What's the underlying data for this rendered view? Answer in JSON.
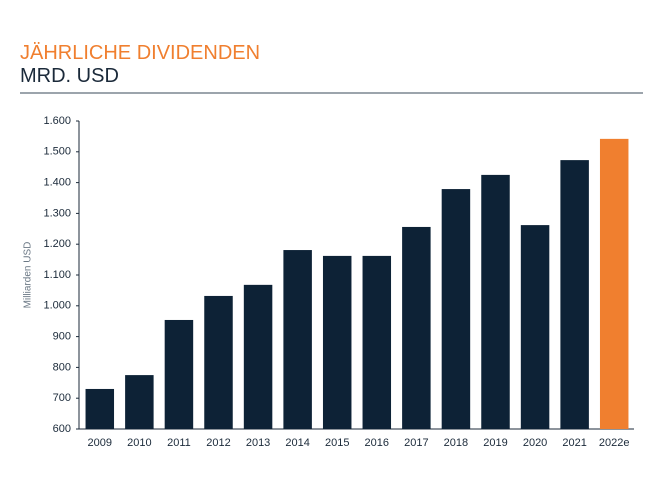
{
  "chart_data": {
    "type": "bar",
    "title": "JÄHRLICHE DIVIDENDEN",
    "subtitle": "MRD. USD",
    "y_label": "Milliarden USD",
    "categories": [
      "2009",
      "2010",
      "2011",
      "2012",
      "2013",
      "2014",
      "2015",
      "2016",
      "2017",
      "2018",
      "2019",
      "2020",
      "2021",
      "2022e"
    ],
    "values": [
      730,
      775,
      954,
      1032,
      1068,
      1181,
      1162,
      1162,
      1256,
      1379,
      1425,
      1262,
      1473,
      1542
    ],
    "colors": [
      "#0d2236",
      "#0d2236",
      "#0d2236",
      "#0d2236",
      "#0d2236",
      "#0d2236",
      "#0d2236",
      "#0d2236",
      "#0d2236",
      "#0d2236",
      "#0d2236",
      "#0d2236",
      "#0d2236",
      "#f07f2f"
    ],
    "ylim": [
      600,
      1600
    ],
    "yticks": [
      600,
      700,
      800,
      900,
      {
        "value": 1000,
        "label": "1.000"
      },
      {
        "value": 1100,
        "label": "1.100"
      },
      {
        "value": 1200,
        "label": "1.200"
      },
      {
        "value": 1300,
        "label": "1.300"
      },
      {
        "value": 1400,
        "label": "1.400"
      },
      {
        "value": 1500,
        "label": "1.500"
      },
      {
        "value": 1600,
        "label": "1.600"
      }
    ],
    "grid": false
  }
}
